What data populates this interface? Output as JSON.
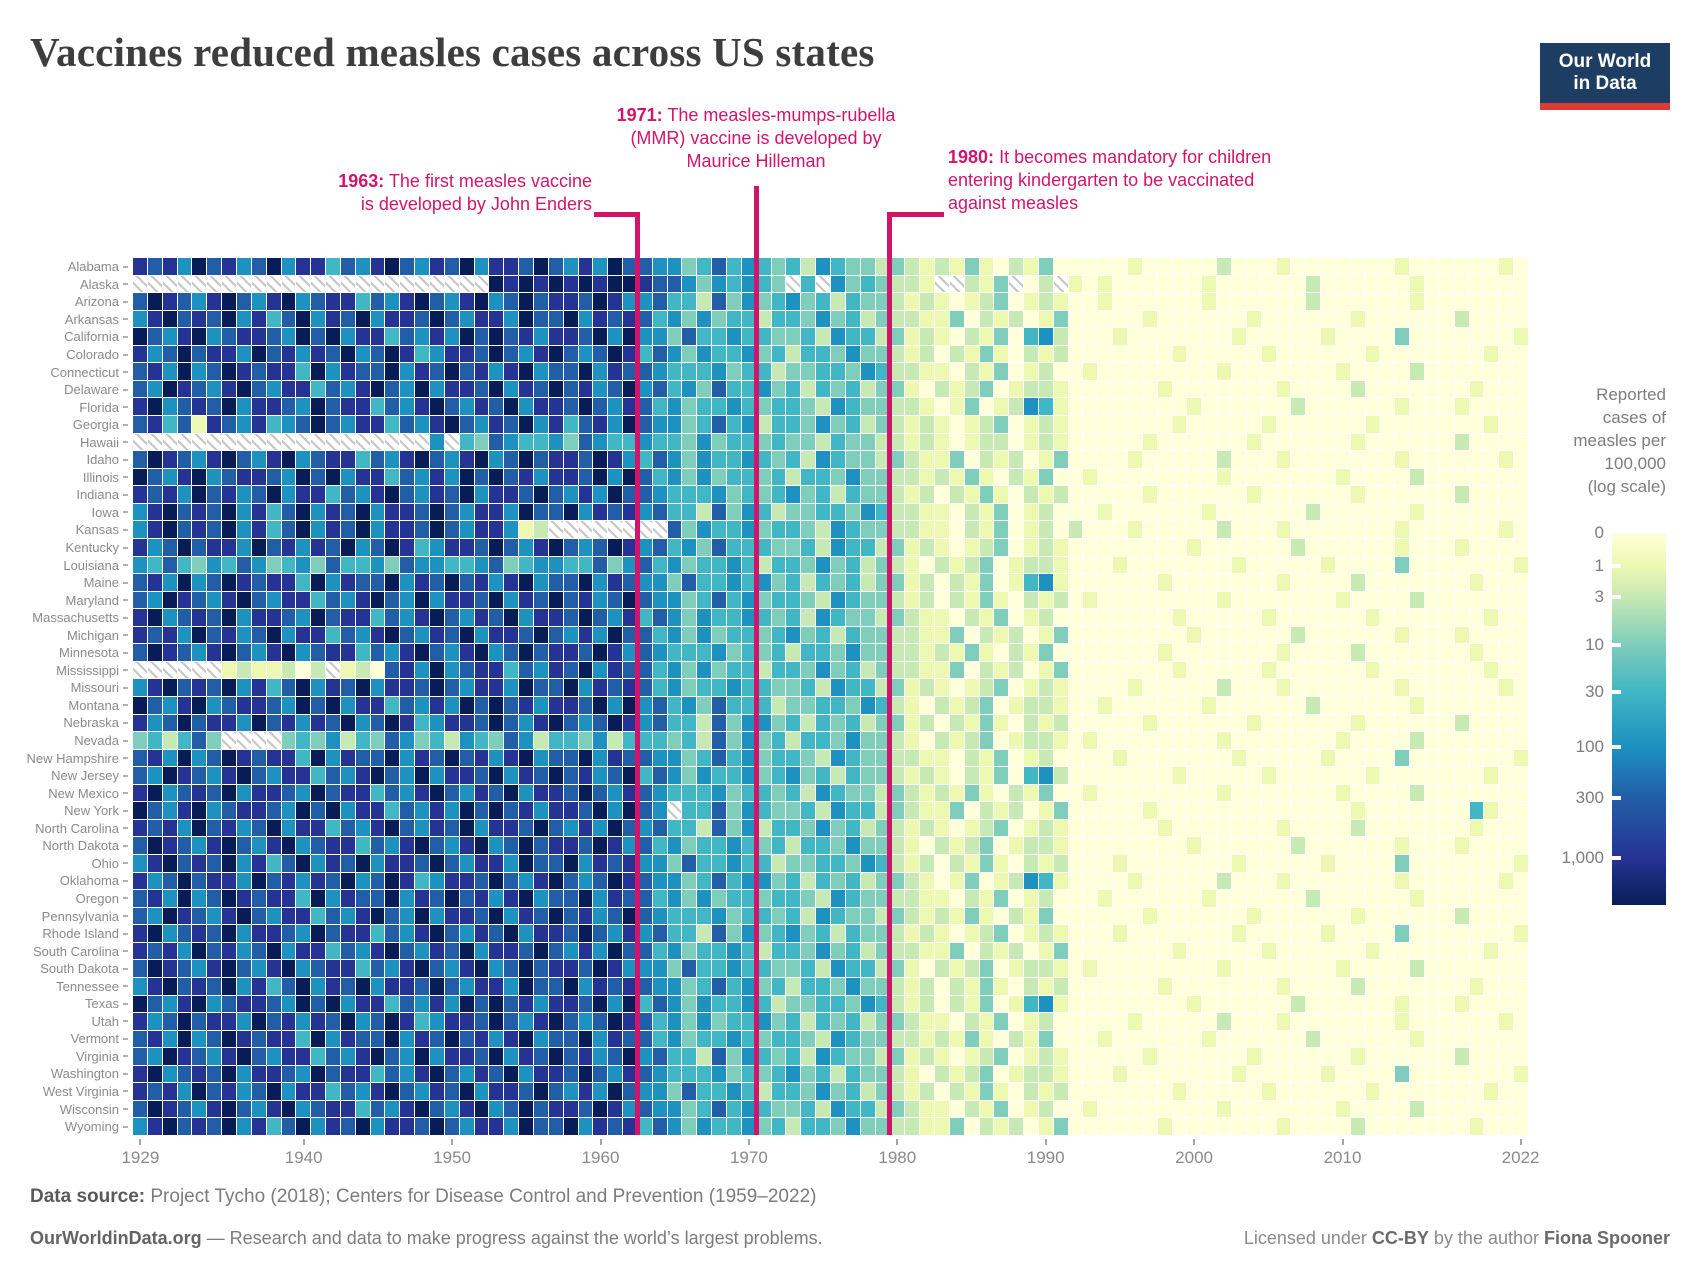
{
  "title": "Vaccines reduced measles cases across US states",
  "logo": {
    "line1": "Our World",
    "line2": "in Data"
  },
  "annotations": [
    {
      "year": 1963,
      "bold": "1963:",
      "lines": [
        "The first measles vaccine",
        "is developed by John Enders"
      ]
    },
    {
      "year": 1971,
      "bold": "1971:",
      "lines": [
        "The measles-mumps-rubella",
        "(MMR) vaccine is developed by",
        "Maurice Hilleman"
      ]
    },
    {
      "year": 1980,
      "bold": "1980:",
      "lines": [
        "It becomes mandatory for children",
        "entering kindergarten to be vaccinated",
        "against measles"
      ]
    }
  ],
  "footer": {
    "source_bold": "Data source:",
    "source_rest": " Project Tycho (2018); Centers for Disease Control and Prevention (1959–2022)",
    "brand_bold": "OurWorldinData.org",
    "brand_rest": " — Research and data to make progress against the world’s largest problems.",
    "license_pre": "Licensed under ",
    "license_bold1": "CC-BY",
    "license_mid": " by the author ",
    "license_bold2": "Fiona Spooner"
  },
  "chart_data": {
    "type": "heatmap",
    "title": "Reported cases of measles per 100,000 people by US state, 1929–2022",
    "years": {
      "start": 1929,
      "end": 2022
    },
    "x_tick_labels": [
      1929,
      1940,
      1950,
      1960,
      1970,
      1980,
      1990,
      2000,
      2010,
      2022
    ],
    "value_scale": {
      "type": "log",
      "unit": "reported cases of measles per 100,000",
      "tick_values": [
        "0",
        "1",
        "3",
        "10",
        "30",
        "100",
        "300",
        "1,000"
      ]
    },
    "legend": {
      "title_lines": [
        "Reported",
        "cases of",
        "measles per",
        "100,000",
        "(log scale)"
      ],
      "ticks": [
        {
          "label": "0",
          "f": 0
        },
        {
          "label": "1",
          "f": 0.089
        },
        {
          "label": "3",
          "f": 0.172
        },
        {
          "label": "10",
          "f": 0.301
        },
        {
          "label": "30",
          "f": 0.427
        },
        {
          "label": "100",
          "f": 0.575
        },
        {
          "label": "300",
          "f": 0.712
        },
        {
          "label": "1,000",
          "f": 0.874
        }
      ]
    },
    "palette": [
      "#ffffd9",
      "#edf8b1",
      "#c7e9b4",
      "#7fcdbb",
      "#41b6c4",
      "#1d91c0",
      "#225ea8",
      "#253494",
      "#081d58"
    ],
    "level_values_per_100k": [
      "~0",
      "~1",
      "~3",
      "~10",
      "~30",
      "~100",
      "~300",
      "~1000",
      ">1000"
    ],
    "missing_symbol": "x",
    "missing_meaning": "data not reported (hatched cell)",
    "series": [
      {
        "state": "Alabama",
        "levels": "767586756857746578657685776865758665534645434254332321213102130½000100000200010000000100000010"
      },
      {
        "state": "Alaska",
        "levels": "xxxxxxxxxxxxxxxxxxxxxxxx87878787887665354543x4x5343221xx213x02x1010000001000000200000010000000"
      },
      {
        "state": "Arizona",
        "levels": "687657865785677465786578568677687556442635345342433212101230121½010000001000000200000010000000"
      },
      {
        "state": "Arkansas",
        "levels": "578676857468576857768657758668576764535344244353423221130212013½000010000001000000100000020000"
      },
      {
        "state": "California",
        "levels": "865785677658685774657586867577685855364454433425442312102130452½001000000010000010000300000001"
      },
      {
        "state": "Colorado",
        "levels": "756867758675768568745776865786568746535445342443533212021310212½000000100000100000010000000100"
      },
      {
        "state": "Connecticut",
        "levels": "675856876774857668576867578566857665444534423344354221102130120½100000000100000001000020000000"
      },
      {
        "state": "Delaware",
        "levels": "658765786577465786585776857686756856453644534243423310212301221½000001000000010000200000001000"
      },
      {
        "state": "Florida",
        "levels": "785676857765867746578657685776865764534454344325433221013012541½000000010000002000000100010000"
      },
      {
        "state": "Georgia",
        "levels": "674617657456865774657865768574675865534645244353423212101230121½000000100000100000010000000100"
      },
      {
        "state": "Hawaii",
        "levels": "xxxxxxxxxxxxxxxxxxxx5x436544536544544353443433243322121012201210000010000001000000100000020000"
      },
      {
        "state": "Idaho",
        "levels": "687657865785677465786578568677687546535445434254332321130212013½000100000200010000000100000010"
      },
      {
        "state": "Illinois",
        "levels": "865785677658685774657586867577685864535344342443533221213102130½100000000100000001000020000000"
      },
      {
        "state": "Indiana",
        "levels": "767586756857746578657685776865758665444534345342433212021310212½000010000001000000100000020000"
      },
      {
        "state": "Iowa",
        "levels": "578676857468576857768657758668576756442635423344354221102130120½010000001000000200000010000000"
      },
      {
        "state": "Kansas",
        "levels": "5786768574685768577686577512xxxxxxxx63544534432543322110213012020001000002000100000%0100000010"
      },
      {
        "state": "Kentucky",
        "levels": "756867758675768568745776865786568756453644433425442312101230121½000000010000002000000100010000"
      },
      {
        "state": "Louisiana",
        "levels": "546435465345364453655445634554463564534454244353423210212301221½001000000010000010000300000001"
      },
      {
        "state": "Maine",
        "levels": "675856876774857668576867578566857655364454534243423312021301451½000001000000010000200000001000"
      },
      {
        "state": "Maryland",
        "levels": "658765786577465786585776857686756865534645344325433212021310212½100000000100000001000020000000"
      },
      {
        "state": "Massachusetts",
        "levels": "785676857765867746578657685776865746535445434254332321102130120½000000100000100000010000000100"
      },
      {
        "state": "Michigan",
        "levels": "767586756857746578657685776865758664535344345342433221130212013½000000010000002000000100010000"
      },
      {
        "state": "Minnesota",
        "levels": "687657865785677465786578568677687565444534342443533221213102130½000001000000010000200000001000"
      },
      {
        "state": "Mississippi",
        "levels": "xxxxxx1211202x1206758567746576857664535344244353423221130212013½000000100000100000010000000100"
      },
      {
        "state": "Missouri",
        "levels": "578676857468576857768657758668576764534454433425442312101230121½000100000200010000000100000010"
      },
      {
        "state": "Montana",
        "levels": "865785677658685774657586867577685856453644423344354210212301221½010000001000000200000010000000"
      },
      {
        "state": "Nebraska",
        "levels": "756867758675768568745776865786568756442635534243423312021310212½000010000001000000100000020000"
      },
      {
        "state": "Nevada",
        "levels": "342463xxxx34352436534254365244352444342635342443533210212301221½100000000100000001000020000000"
      },
      {
        "state": "New Hampshire",
        "levels": "675856876774857668576867578566857665534645344325433221102130120½001000000010000010000300000001"
      },
      {
        "state": "New Jersey",
        "levels": "658765786577465786585776857686756846535445345342433212102130452½000000100000100000010000000100"
      },
      {
        "state": "New Mexico",
        "levels": "785676857765867746578657685776865765444534434254332321213102130½100000000100000001000020000000"
      },
      {
        "state": "New York",
        "levels": "865785677658685774657586867577685865x44635433425442321130212013½000010000000000000100000004100"
      },
      {
        "state": "North Carolina",
        "levels": "767586756857746578657685776865758656442635244353423212101230121½000001000000010000200000001000"
      },
      {
        "state": "North Dakota",
        "levels": "687657865785677465786578568677687564534454342443533210212301221½000000010000002000000100010000"
      },
      {
        "state": "Ohio",
        "levels": "578676857468576857768657758668576755364454423344354212021310212½001000000010000010000300000001"
      },
      {
        "state": "Oklahoma",
        "levels": "756867758675768568745776865786568765534645534243423321013012541½000100000200010000000100000010"
      },
      {
        "state": "Oregon",
        "levels": "675856876774857668576867578566857664535344344325433221102130120½010000001000000200000010000000"
      },
      {
        "state": "Pennsylvania",
        "levels": "658765786577465786585776857686756865444534434254332321213102130½000010000001000000100000020000"
      },
      {
        "state": "Rhode Island",
        "levels": "785676857765867746578657685776865756442635345342433212101230121½001000000010000010000300000001"
      },
      {
        "state": "South Carolina",
        "levels": "767586756857746578657685776865758664534454244353423221130212013½000000100000100000010000000100"
      },
      {
        "state": "South Dakota",
        "levels": "687657865785677465786578568677687555364454433425442310212301221½100000000100000001000020000000"
      },
      {
        "state": "Tennessee",
        "levels": "578676857468576857768657758668576765534645342443533212021310212½000001000000010000200000001000"
      },
      {
        "state": "Texas",
        "levels": "865785677658685774657586867577685846535445423344354212021301451½000000010000002000000100010000"
      },
      {
        "state": "Utah",
        "levels": "756867758675768568745776865786568764535344534243423321102130120½000100000200010000000100000010"
      },
      {
        "state": "Vermont",
        "levels": "675856876774857668576867578566857664534454344325433221213102130½010000001000000200000010000000"
      },
      {
        "state": "Virginia",
        "levels": "658765786577465786585776857686756856442635434254332312101230121½000010000001000000100000020000"
      },
      {
        "state": "Washington",
        "levels": "785676857765867746578657685776865765444534345342433210212301221½001000000010000010000300000001"
      },
      {
        "state": "West Virginia",
        "levels": "767586756857746578657685776865758655364454244353423212021310212½000000100000100000010000000100"
      },
      {
        "state": "Wisconsin",
        "levels": "687657865785677465786578568677687565534645433425442321102130120½100000000100000001000020000000"
      },
      {
        "state": "Wyoming",
        "levels": "578676857468576857768657758668576746535445342443533221130212013½000001000000010000200000001000"
      }
    ]
  }
}
